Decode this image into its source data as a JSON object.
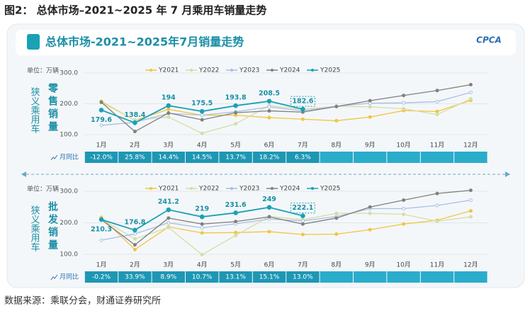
{
  "figure_title": "图2： 总体市场–2021~2025 年 7 月乘用车销量走势",
  "panel_title": "总体市场-2021~2025年7月销量走势",
  "logo": "CPCA",
  "source": "数据来源：乘联分会，财通证券研究所",
  "chart_data": [
    {
      "type": "line",
      "title": "零售销量",
      "axis_label": "狭义乘用车",
      "unit": "单位：万辆",
      "categories": [
        "1月",
        "2月",
        "3月",
        "4月",
        "5月",
        "6月",
        "7月",
        "8月",
        "9月",
        "10月",
        "11月",
        "12月"
      ],
      "ylim": [
        100,
        300
      ],
      "yticks": [
        {
          "value": 100,
          "label": "100.0"
        },
        {
          "value": 200,
          "label": "200.0"
        },
        {
          "value": 300,
          "label": "300.0"
        }
      ],
      "grid": true,
      "series": [
        {
          "name": "Y2021",
          "color": "#f2c443",
          "values": [
            208,
            146,
            182,
            163,
            163,
            155,
            150,
            145,
            157,
            178,
            175,
            211
          ]
        },
        {
          "name": "Y2022",
          "color": "#d4dea6",
          "values": [
            205,
            147,
            157,
            104,
            135,
            194,
            182,
            192,
            190,
            184,
            165,
            216
          ]
        },
        {
          "name": "Y2023",
          "color": "#a7bfe6",
          "values": [
            130,
            140,
            169,
            163,
            174,
            190,
            177,
            192,
            202,
            203,
            207,
            237
          ]
        },
        {
          "name": "Y2024",
          "color": "#808080",
          "values": [
            205,
            110,
            170,
            148,
            171,
            177,
            173,
            191,
            210,
            227,
            243,
            262
          ]
        },
        {
          "name": "Y2025",
          "color": "#1aa1b6",
          "values": [
            179.6,
            138.4,
            194.0,
            175.5,
            193.8,
            208.5,
            182.6,
            null,
            null,
            null,
            null,
            null
          ]
        }
      ],
      "yoy_label": "月同比",
      "yoy_values": [
        -12.0,
        25.8,
        14.4,
        14.5,
        13.7,
        18.2,
        6.3
      ],
      "yoy_value_labels": [
        "-12.0%",
        "25.8%",
        "14.4%",
        "14.5%",
        "13.7%",
        "18.2%",
        "6.3%"
      ]
    },
    {
      "type": "line",
      "title": "批发销量",
      "axis_label": "狭义乘用车",
      "unit": "单位：万辆",
      "categories": [
        "1月",
        "2月",
        "3月",
        "4月",
        "5月",
        "6月",
        "7月",
        "8月",
        "9月",
        "10月",
        "11月",
        "12月"
      ],
      "ylim": [
        100,
        300
      ],
      "yticks": [
        {
          "value": 100,
          "label": "100.0"
        },
        {
          "value": 200,
          "label": "200.0"
        },
        {
          "value": 300,
          "label": "300.0"
        }
      ],
      "grid": true,
      "series": [
        {
          "name": "Y2021",
          "color": "#f2c443",
          "values": [
            217,
            115,
            187,
            168,
            169,
            172,
            163,
            164,
            178,
            196,
            208,
            238
          ]
        },
        {
          "name": "Y2022",
          "color": "#d4dea6",
          "values": [
            212,
            149,
            185,
            99,
            160,
            220,
            210,
            230,
            230,
            227,
            205,
            219
          ]
        },
        {
          "name": "Y2023",
          "color": "#a7bfe6",
          "values": [
            145,
            165,
            200,
            184,
            197,
            212,
            206,
            220,
            245,
            245,
            255,
            272
          ]
        },
        {
          "name": "Y2024",
          "color": "#808080",
          "values": [
            210,
            130,
            215,
            196,
            204,
            219,
            196,
            215,
            250,
            272,
            293,
            303
          ]
        },
        {
          "name": "Y2025",
          "color": "#1aa1b6",
          "values": [
            210.3,
            176.8,
            241.2,
            219.0,
            231.6,
            249.0,
            222.1,
            null,
            null,
            null,
            null,
            null
          ]
        }
      ],
      "yoy_label": "月同比",
      "yoy_values": [
        -0.2,
        33.9,
        8.9,
        10.7,
        13.1,
        15.1,
        13.0
      ],
      "yoy_value_labels": [
        "-0.2%",
        "33.9%",
        "8.9%",
        "10.7%",
        "13.1%",
        "15.1%",
        "13.0%"
      ]
    }
  ]
}
